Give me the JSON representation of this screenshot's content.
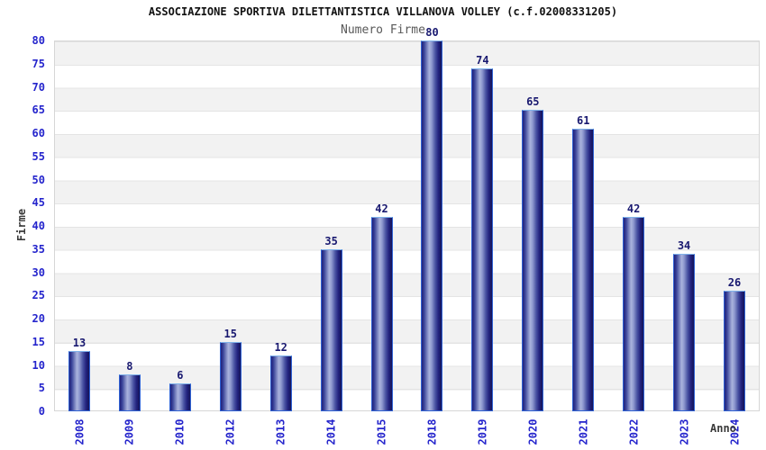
{
  "title": "ASSOCIAZIONE SPORTIVA DILETTANTISTICA VILLANOVA VOLLEY (c.f.02008331205)",
  "subtitle": "Numero Firme",
  "chart_data": {
    "type": "bar",
    "title": "ASSOCIAZIONE SPORTIVA DILETTANTISTICA VILLANOVA VOLLEY (c.f.02008331205)",
    "subtitle": "Numero Firme",
    "xlabel": "Anno",
    "ylabel": "Firme",
    "categories": [
      "2008",
      "2009",
      "2010",
      "2012",
      "2013",
      "2014",
      "2015",
      "2018",
      "2019",
      "2020",
      "2021",
      "2022",
      "2023",
      "2024"
    ],
    "values": [
      13,
      8,
      6,
      15,
      12,
      35,
      42,
      80,
      74,
      65,
      61,
      42,
      34,
      26
    ],
    "ylim": [
      0,
      80
    ],
    "ytick_step": 5,
    "grid": "horizontal-bands",
    "legend": "none",
    "colors": {
      "tick_label": "#2424cc",
      "value_label": "#191970",
      "bar_dark": "#20207a",
      "bar_light": "#aab3dd",
      "bar_border": "#2f62d4",
      "bar_border_top": "#7fb2ea",
      "band_gray": "#f2f2f2",
      "band_white": "#ffffff",
      "band_line": "#e4e4e4",
      "plot_border": "#d6d6d6",
      "title_color": "#111111",
      "subtitle_color": "#595959",
      "axis_title_color": "#3a3a3a"
    }
  }
}
